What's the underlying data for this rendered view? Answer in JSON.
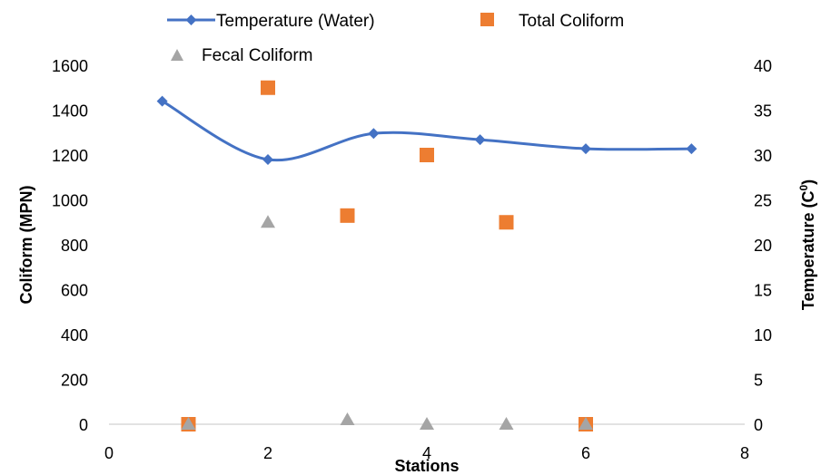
{
  "chart_data": {
    "type": "scatter",
    "xlabel": "Stations",
    "ylabel_left": "Coliform (MPN)",
    "ylabel_right_prefix": "Temperature (C",
    "ylabel_right_sup": "0",
    "ylabel_right_suffix": ")",
    "xlim": [
      0,
      8
    ],
    "ylim_left": [
      0,
      1600
    ],
    "ylim_right": [
      0,
      40
    ],
    "x_ticks": [
      "0",
      "2",
      "4",
      "6",
      "8"
    ],
    "y_left_ticks": [
      "0",
      "200",
      "400",
      "600",
      "800",
      "1000",
      "1200",
      "1400",
      "1600"
    ],
    "y_right_ticks": [
      "0",
      "5",
      "10",
      "15",
      "20",
      "25",
      "30",
      "35",
      "40"
    ],
    "grid": false,
    "legend_position": "top",
    "series": [
      {
        "name": "Temperature (Water)",
        "axis": "right",
        "style": "line-smooth-diamond",
        "color": "#4472C4",
        "x": [
          0.67,
          2,
          3.33,
          4.67,
          6,
          7.33
        ],
        "y": [
          36,
          29.5,
          32.4,
          31.7,
          30.7,
          30.7
        ]
      },
      {
        "name": "Total Coliform",
        "axis": "left",
        "style": "square",
        "color": "#ED7D31",
        "x": [
          1,
          2,
          3,
          4,
          5,
          6
        ],
        "y": [
          0,
          1500,
          930,
          1200,
          900,
          0
        ]
      },
      {
        "name": "Fecal Coliform",
        "axis": "left",
        "style": "triangle",
        "color": "#A5A5A5",
        "x": [
          1,
          2,
          3,
          4,
          5,
          6
        ],
        "y": [
          0,
          900,
          20,
          0,
          0,
          0
        ]
      }
    ]
  }
}
